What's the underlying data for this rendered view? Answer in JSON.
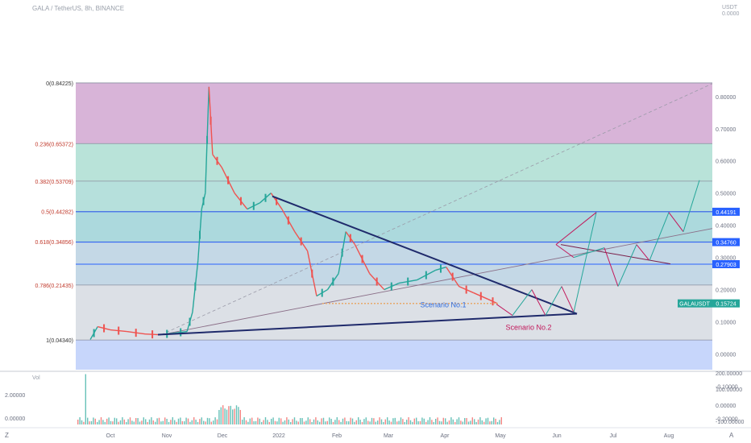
{
  "header": {
    "symbol_line": "GALA / TetherUS, 8h, BINANCE",
    "unit_line1": "USDT",
    "unit_line2": "0.0000"
  },
  "colors": {
    "fib_0_236": "#d8b4d8",
    "fib_236_382": "#b9e3d9",
    "fib_382_5": "#b6e0dc",
    "fib_5_618": "#acd9dd",
    "fib_618_786": "#c4d8e6",
    "fib_786_1": "#dce0e6",
    "below_1": "#c7d6fb",
    "candle_up": "#26a69a",
    "candle_down": "#ef5350",
    "blue_line": "#2962ff",
    "triangle": "#1f2a6b",
    "scenario1": "#2f6de1",
    "scenario2": "#c2185b",
    "price_tag": "#26a69a"
  },
  "chart_data": {
    "type": "candlestick",
    "title": "GALA / TetherUS, 8h, BINANCE",
    "x_ticks": [
      "Oct",
      "Nov",
      "Dec",
      "2022",
      "Feb",
      "Mar",
      "Apr",
      "May",
      "Jun",
      "Jul",
      "Aug"
    ],
    "y_ticks": [
      "0.80000",
      "0.70000",
      "0.60000",
      "0.50000",
      "0.40000",
      "0.30000",
      "0.20000",
      "0.10000",
      "0.00000",
      "-0.10000",
      "-0.20000"
    ],
    "y_tick_values": [
      0.8,
      0.7,
      0.6,
      0.5,
      0.4,
      0.3,
      0.2,
      0.1,
      0.0,
      -0.1,
      -0.2
    ],
    "ylim": [
      -0.2,
      0.84225
    ],
    "fib_levels": [
      {
        "label": "0(0.84225)",
        "value": 0.84225
      },
      {
        "label": "0.236(0.65372)",
        "value": 0.65372
      },
      {
        "label": "0.382(0.53709)",
        "value": 0.53709
      },
      {
        "label": "0.5(0.44282)",
        "value": 0.44282
      },
      {
        "label": "0.618(0.34856)",
        "value": 0.34856
      },
      {
        "label": "0.786(0.21435)",
        "value": 0.21435
      },
      {
        "label": "1(0.04340)",
        "value": 0.0434
      }
    ],
    "horizontal_lines": [
      {
        "label": "0.44191",
        "value": 0.44191
      },
      {
        "label": "0.34760",
        "value": 0.3476
      },
      {
        "label": "0.27903",
        "value": 0.27903
      }
    ],
    "current_price": {
      "symbol": "GALAUSDT",
      "value": "0.15724",
      "num": 0.15724
    },
    "annotations": [
      "Scenario No.1",
      "Scenario No.2"
    ],
    "price_series": [
      {
        "t": "Sep 20",
        "v": 0.045
      },
      {
        "t": "Sep 24",
        "v": 0.085
      },
      {
        "t": "Oct 1",
        "v": 0.075
      },
      {
        "t": "Oct 10",
        "v": 0.07
      },
      {
        "t": "Oct 20",
        "v": 0.062
      },
      {
        "t": "Oct 28",
        "v": 0.06
      },
      {
        "t": "Nov 5",
        "v": 0.065
      },
      {
        "t": "Nov 12",
        "v": 0.07
      },
      {
        "t": "Nov 15",
        "v": 0.13
      },
      {
        "t": "Nov 18",
        "v": 0.29
      },
      {
        "t": "Nov 20",
        "v": 0.45
      },
      {
        "t": "Nov 22",
        "v": 0.5
      },
      {
        "t": "Nov 24",
        "v": 0.83
      },
      {
        "t": "Nov 26",
        "v": 0.62
      },
      {
        "t": "Dec 1",
        "v": 0.58
      },
      {
        "t": "Dec 8",
        "v": 0.5
      },
      {
        "t": "Dec 15",
        "v": 0.45
      },
      {
        "t": "Dec 22",
        "v": 0.47
      },
      {
        "t": "Dec 28",
        "v": 0.5
      },
      {
        "t": "Jan 3",
        "v": 0.45
      },
      {
        "t": "Jan 10",
        "v": 0.38
      },
      {
        "t": "Jan 17",
        "v": 0.32
      },
      {
        "t": "Jan 22",
        "v": 0.18
      },
      {
        "t": "Jan 28",
        "v": 0.2
      },
      {
        "t": "Feb 3",
        "v": 0.25
      },
      {
        "t": "Feb 7",
        "v": 0.38
      },
      {
        "t": "Feb 12",
        "v": 0.34
      },
      {
        "t": "Feb 20",
        "v": 0.25
      },
      {
        "t": "Feb 28",
        "v": 0.2
      },
      {
        "t": "Mar 8",
        "v": 0.22
      },
      {
        "t": "Mar 18",
        "v": 0.23
      },
      {
        "t": "Mar 28",
        "v": 0.26
      },
      {
        "t": "Apr 3",
        "v": 0.27
      },
      {
        "t": "Apr 10",
        "v": 0.21
      },
      {
        "t": "Apr 18",
        "v": 0.19
      },
      {
        "t": "Apr 26",
        "v": 0.17
      },
      {
        "t": "May 1",
        "v": 0.157
      }
    ],
    "volume_panel": {
      "label": "Vol",
      "y_ticks_left": [
        "2.00000",
        "0.00000"
      ],
      "y_ticks_right": [
        "200.00000",
        "100.00000",
        "0.00000",
        "-100.00000"
      ]
    }
  },
  "bottom_bar": {
    "left": "Z",
    "right": "A"
  }
}
